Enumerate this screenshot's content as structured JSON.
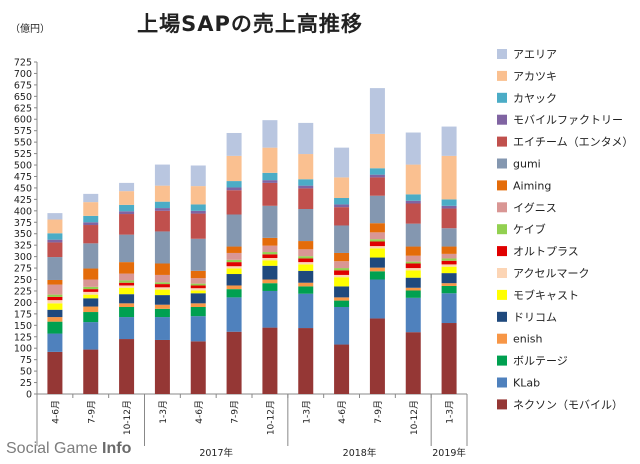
{
  "chart_data": {
    "type": "bar",
    "stacked": true,
    "title": "上場SAPの売上高推移",
    "unit_label": "（億円）",
    "ylim": [
      0,
      725
    ],
    "ytick_step": 25,
    "grid": false,
    "legend_position": "right",
    "categories": [
      "4-6月",
      "7-9月",
      "10-12月",
      "1-3月",
      "4-6月",
      "7-9月",
      "10-12月",
      "1-3月",
      "4-6月",
      "7-9月",
      "10-12月",
      "1-3月"
    ],
    "year_groups": [
      {
        "label": "",
        "count": 3
      },
      {
        "label": "2017年",
        "count": 4
      },
      {
        "label": "2018年",
        "count": 4
      },
      {
        "label": "2019年",
        "count": 1
      }
    ],
    "series": [
      {
        "name": "ネクソン（モバイル）",
        "color": "#953735",
        "values": [
          92,
          97,
          120,
          118,
          115,
          136,
          145,
          144,
          108,
          165,
          135,
          155
        ]
      },
      {
        "name": "KLab",
        "color": "#4f81bd",
        "values": [
          40,
          60,
          48,
          50,
          55,
          75,
          80,
          75,
          82,
          85,
          75,
          65
        ]
      },
      {
        "name": "ボルテージ",
        "color": "#00a050",
        "values": [
          26,
          22,
          22,
          18,
          20,
          18,
          17,
          16,
          14,
          18,
          16,
          16
        ]
      },
      {
        "name": "enish",
        "color": "#f79646",
        "values": [
          10,
          12,
          8,
          9,
          8,
          8,
          8,
          8,
          7,
          8,
          6,
          6
        ]
      },
      {
        "name": "ドリコム",
        "color": "#1f497d",
        "values": [
          16,
          18,
          20,
          21,
          22,
          25,
          30,
          26,
          24,
          22,
          22,
          22
        ]
      },
      {
        "name": "モブキャスト",
        "color": "#ffff00",
        "values": [
          14,
          8,
          14,
          12,
          6,
          12,
          12,
          14,
          20,
          20,
          16,
          14
        ]
      },
      {
        "name": "アクセルマーク",
        "color": "#fcd5b5",
        "values": [
          7,
          6,
          5,
          5,
          5,
          5,
          5,
          5,
          5,
          5,
          5,
          5
        ]
      },
      {
        "name": "オルトプラス",
        "color": "#e00000",
        "values": [
          7,
          6,
          6,
          7,
          6,
          9,
          8,
          8,
          10,
          10,
          10,
          8
        ]
      },
      {
        "name": "ケイブ",
        "color": "#92d050",
        "values": [
          5,
          5,
          5,
          4,
          4,
          5,
          5,
          5,
          5,
          5,
          4,
          5
        ]
      },
      {
        "name": "イグニス",
        "color": "#d99694",
        "values": [
          22,
          16,
          15,
          16,
          12,
          15,
          14,
          15,
          15,
          15,
          13,
          10
        ]
      },
      {
        "name": "Aiming",
        "color": "#e46c0a",
        "values": [
          10,
          24,
          25,
          25,
          16,
          14,
          17,
          18,
          18,
          20,
          20,
          16
        ]
      },
      {
        "name": "gumi",
        "color": "#8497b0",
        "values": [
          50,
          55,
          60,
          70,
          70,
          70,
          70,
          70,
          60,
          60,
          50,
          40
        ]
      },
      {
        "name": "エイチーム（エンタメ）",
        "color": "#c0504d",
        "values": [
          32,
          40,
          45,
          45,
          55,
          53,
          50,
          45,
          40,
          40,
          44,
          43
        ]
      },
      {
        "name": "モバイルファクトリー",
        "color": "#8064a2",
        "values": [
          6,
          6,
          6,
          6,
          6,
          6,
          6,
          6,
          6,
          6,
          6,
          6
        ]
      },
      {
        "name": "カヤック",
        "color": "#4bacc6",
        "values": [
          14,
          14,
          14,
          14,
          14,
          14,
          16,
          14,
          14,
          14,
          14,
          14
        ]
      },
      {
        "name": "アカツキ",
        "color": "#fac090",
        "values": [
          30,
          30,
          30,
          35,
          40,
          55,
          55,
          55,
          45,
          75,
          65,
          95
        ]
      },
      {
        "name": "アエリア",
        "color": "#b9c6e0",
        "values": [
          14,
          18,
          18,
          46,
          45,
          50,
          60,
          68,
          65,
          100,
          70,
          64
        ]
      }
    ]
  },
  "watermark": {
    "prefix": "Social Game ",
    "suffix": "Info"
  }
}
